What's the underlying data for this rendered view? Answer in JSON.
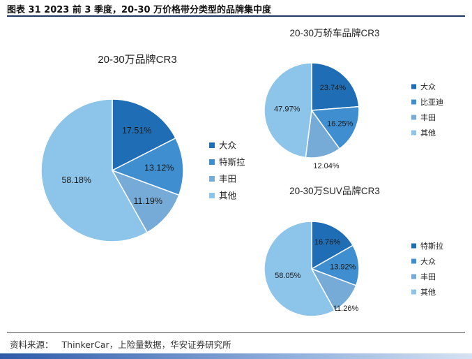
{
  "figure_title": "图表 31 2023 前 3 季度，20-30 万价格带分类型的品牌集中度",
  "source": {
    "prefix": "资料来源：",
    "text": "ThinkerCar，上险量数据，华安证券研究所"
  },
  "colors": {
    "c1": "#1f6eb5",
    "c2": "#3f8fd0",
    "c3": "#75abd6",
    "c4": "#8cc4ea",
    "rule": "#1f3864"
  },
  "chart_data": [
    {
      "type": "pie",
      "title": "20-30万品牌CR3",
      "slices": [
        {
          "label": "大众",
          "value": 17.51,
          "display": "17.51%",
          "color": "#1f6eb5"
        },
        {
          "label": "特斯拉",
          "value": 13.12,
          "display": "13.12%",
          "color": "#3f8fd0"
        },
        {
          "label": "丰田",
          "value": 11.19,
          "display": "11.19%",
          "color": "#75abd6"
        },
        {
          "label": "其他",
          "value": 58.18,
          "display": "58.18%",
          "color": "#8cc4ea"
        }
      ],
      "legend_placement": "right"
    },
    {
      "type": "pie",
      "title": "20-30万轿车品牌CR3",
      "slices": [
        {
          "label": "大众",
          "value": 23.74,
          "display": "23.74%",
          "color": "#1f6eb5"
        },
        {
          "label": "比亚迪",
          "value": 16.25,
          "display": "16.25%",
          "color": "#3f8fd0"
        },
        {
          "label": "丰田",
          "value": 12.04,
          "display": "12.04%",
          "color": "#75abd6"
        },
        {
          "label": "其他",
          "value": 47.97,
          "display": "47.97%",
          "color": "#8cc4ea"
        }
      ],
      "legend_placement": "right"
    },
    {
      "type": "pie",
      "title": "20-30万SUV品牌CR3",
      "slices": [
        {
          "label": "特斯拉",
          "value": 16.76,
          "display": "16.76%",
          "color": "#1f6eb5"
        },
        {
          "label": "大众",
          "value": 13.92,
          "display": "13.92%",
          "color": "#3f8fd0"
        },
        {
          "label": "丰田",
          "value": 11.26,
          "display": "11.26%",
          "color": "#75abd6"
        },
        {
          "label": "其他",
          "value": 58.05,
          "display": "58.05%",
          "color": "#8cc4ea"
        }
      ],
      "legend_placement": "right"
    }
  ]
}
